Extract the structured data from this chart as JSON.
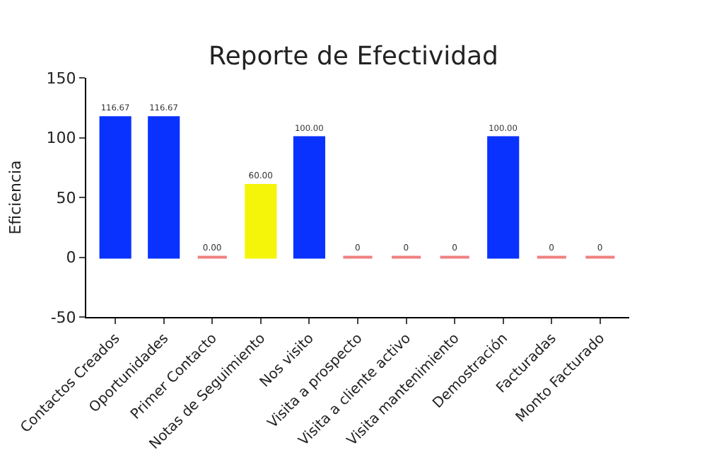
{
  "chart_data": {
    "type": "bar",
    "title": "Reporte de Efectividad",
    "ylabel": "Eficiencia",
    "categories": [
      "Contactos Creados",
      "Oportunidades",
      "Primer Contacto",
      "Notas de Seguimiento",
      "Nos visito",
      "Visita a prospecto",
      "Visita a cliente activo",
      "Visita mantenimiento",
      "Demostración",
      "Facturadas",
      "Monto Facturado"
    ],
    "values": [
      116.67,
      116.67,
      0,
      60,
      100,
      0,
      0,
      0,
      100,
      0,
      0
    ],
    "colors": [
      "#0a32ff",
      "#0a32ff",
      "#f08080",
      "#f5f50a",
      "#0a32ff",
      "#f08080",
      "#f08080",
      "#f08080",
      "#0a32ff",
      "#f08080",
      "#f08080"
    ],
    "value_labels": [
      "116.67",
      "116.67",
      "0.00",
      "60.00",
      "100.00",
      "0",
      "0",
      "0",
      "100.00",
      "0",
      "0"
    ],
    "ylim": [
      -50,
      150
    ],
    "yticks": [
      -50,
      0,
      50,
      100,
      150
    ]
  }
}
